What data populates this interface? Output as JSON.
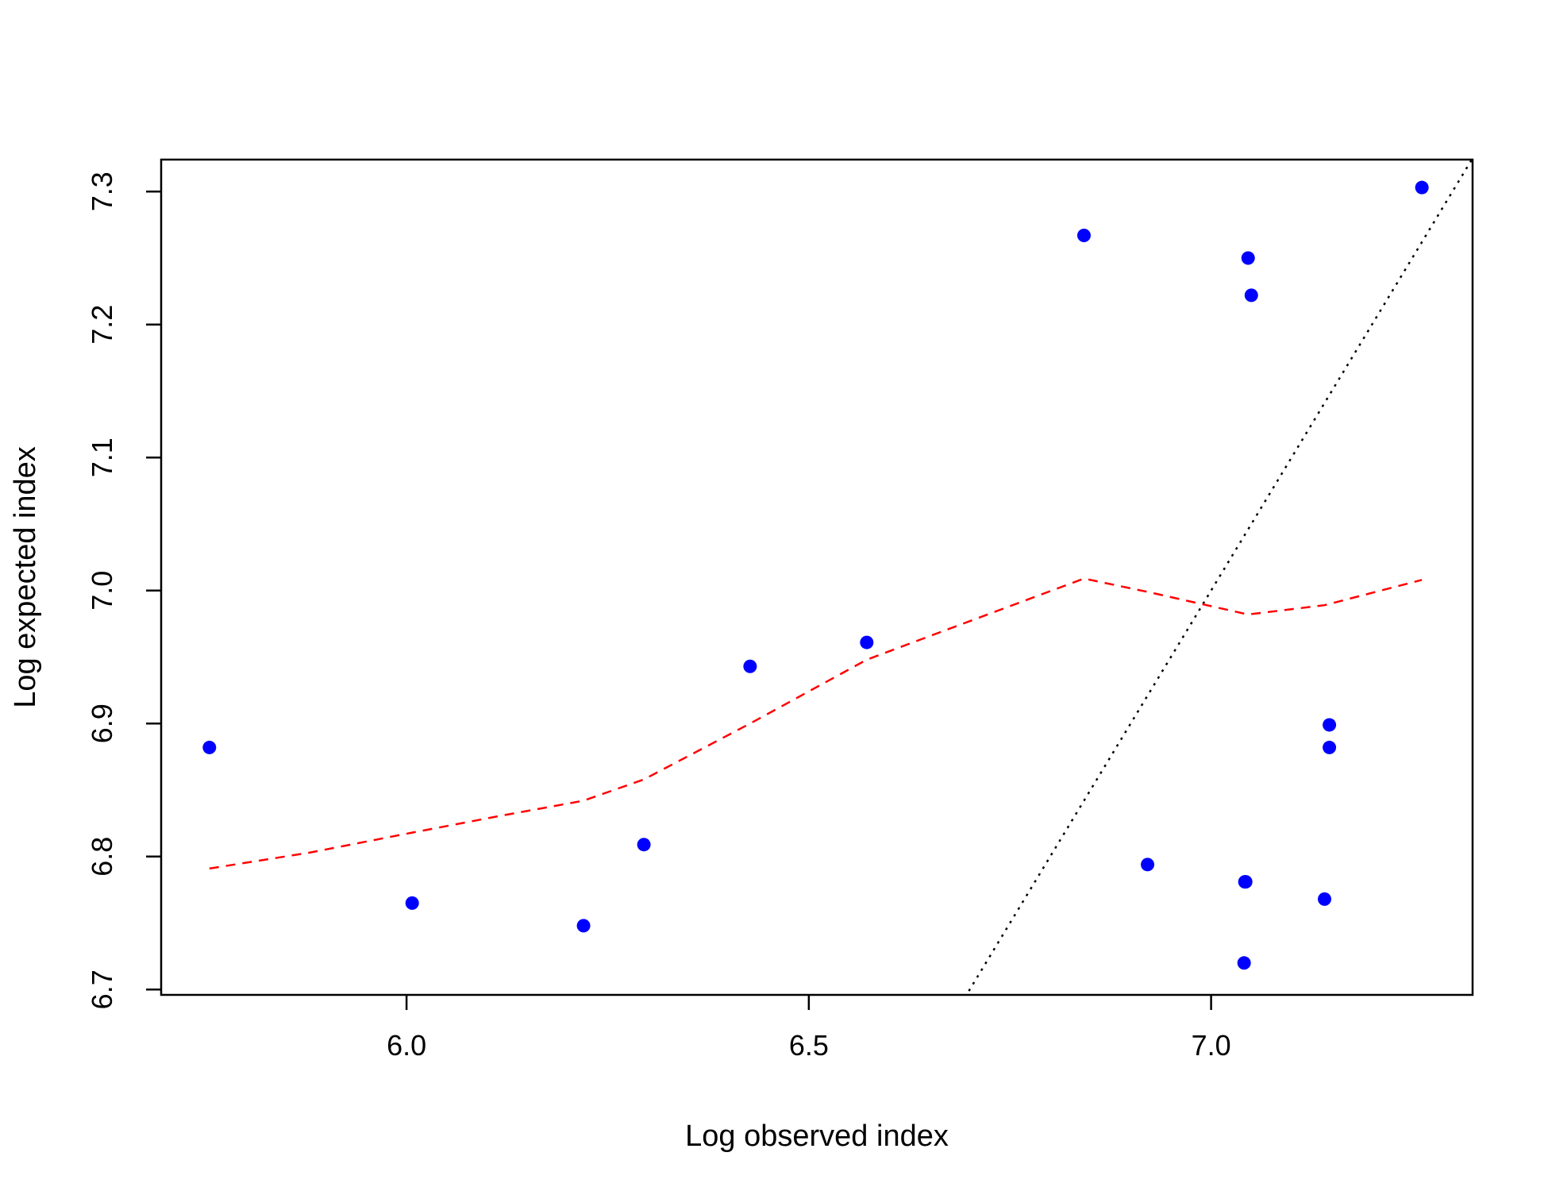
{
  "chart_data": {
    "type": "scatter",
    "title": "",
    "xlabel": "Log observed index",
    "ylabel": "Log expected index",
    "xlim": [
      5.695,
      7.325
    ],
    "ylim": [
      6.696,
      7.324
    ],
    "x_ticks": [
      "6.0",
      "6.5",
      "7.0"
    ],
    "y_ticks": [
      "6.7",
      "6.8",
      "6.9",
      "7.0",
      "7.1",
      "7.2",
      "7.3"
    ],
    "grid": false,
    "points": {
      "color": "#0000ff",
      "x": [
        5.755,
        6.007,
        6.22,
        6.295,
        6.427,
        6.572,
        6.842,
        6.921,
        7.041,
        7.046,
        7.05,
        7.141,
        7.147,
        7.147,
        7.042,
        7.043,
        7.262
      ],
      "y": [
        6.882,
        6.765,
        6.748,
        6.809,
        6.943,
        6.961,
        7.267,
        6.794,
        6.72,
        7.25,
        7.222,
        6.768,
        6.899,
        6.882,
        6.781,
        6.781,
        7.303
      ]
    },
    "smooth_line": {
      "color": "#ff0000",
      "style": "dashed",
      "x": [
        5.755,
        5.88,
        6.007,
        6.12,
        6.22,
        6.295,
        6.427,
        6.572,
        6.7,
        6.842,
        6.921,
        7.046,
        7.141,
        7.262
      ],
      "y": [
        6.791,
        6.803,
        6.818,
        6.831,
        6.842,
        6.858,
        6.9,
        6.948,
        6.977,
        7.009,
        6.999,
        6.982,
        6.989,
        7.008
      ]
    },
    "reference_line": {
      "color": "#000000",
      "style": "dotted",
      "x": [
        6.6989,
        7.325
      ],
      "y": [
        6.6989,
        7.325
      ]
    }
  }
}
